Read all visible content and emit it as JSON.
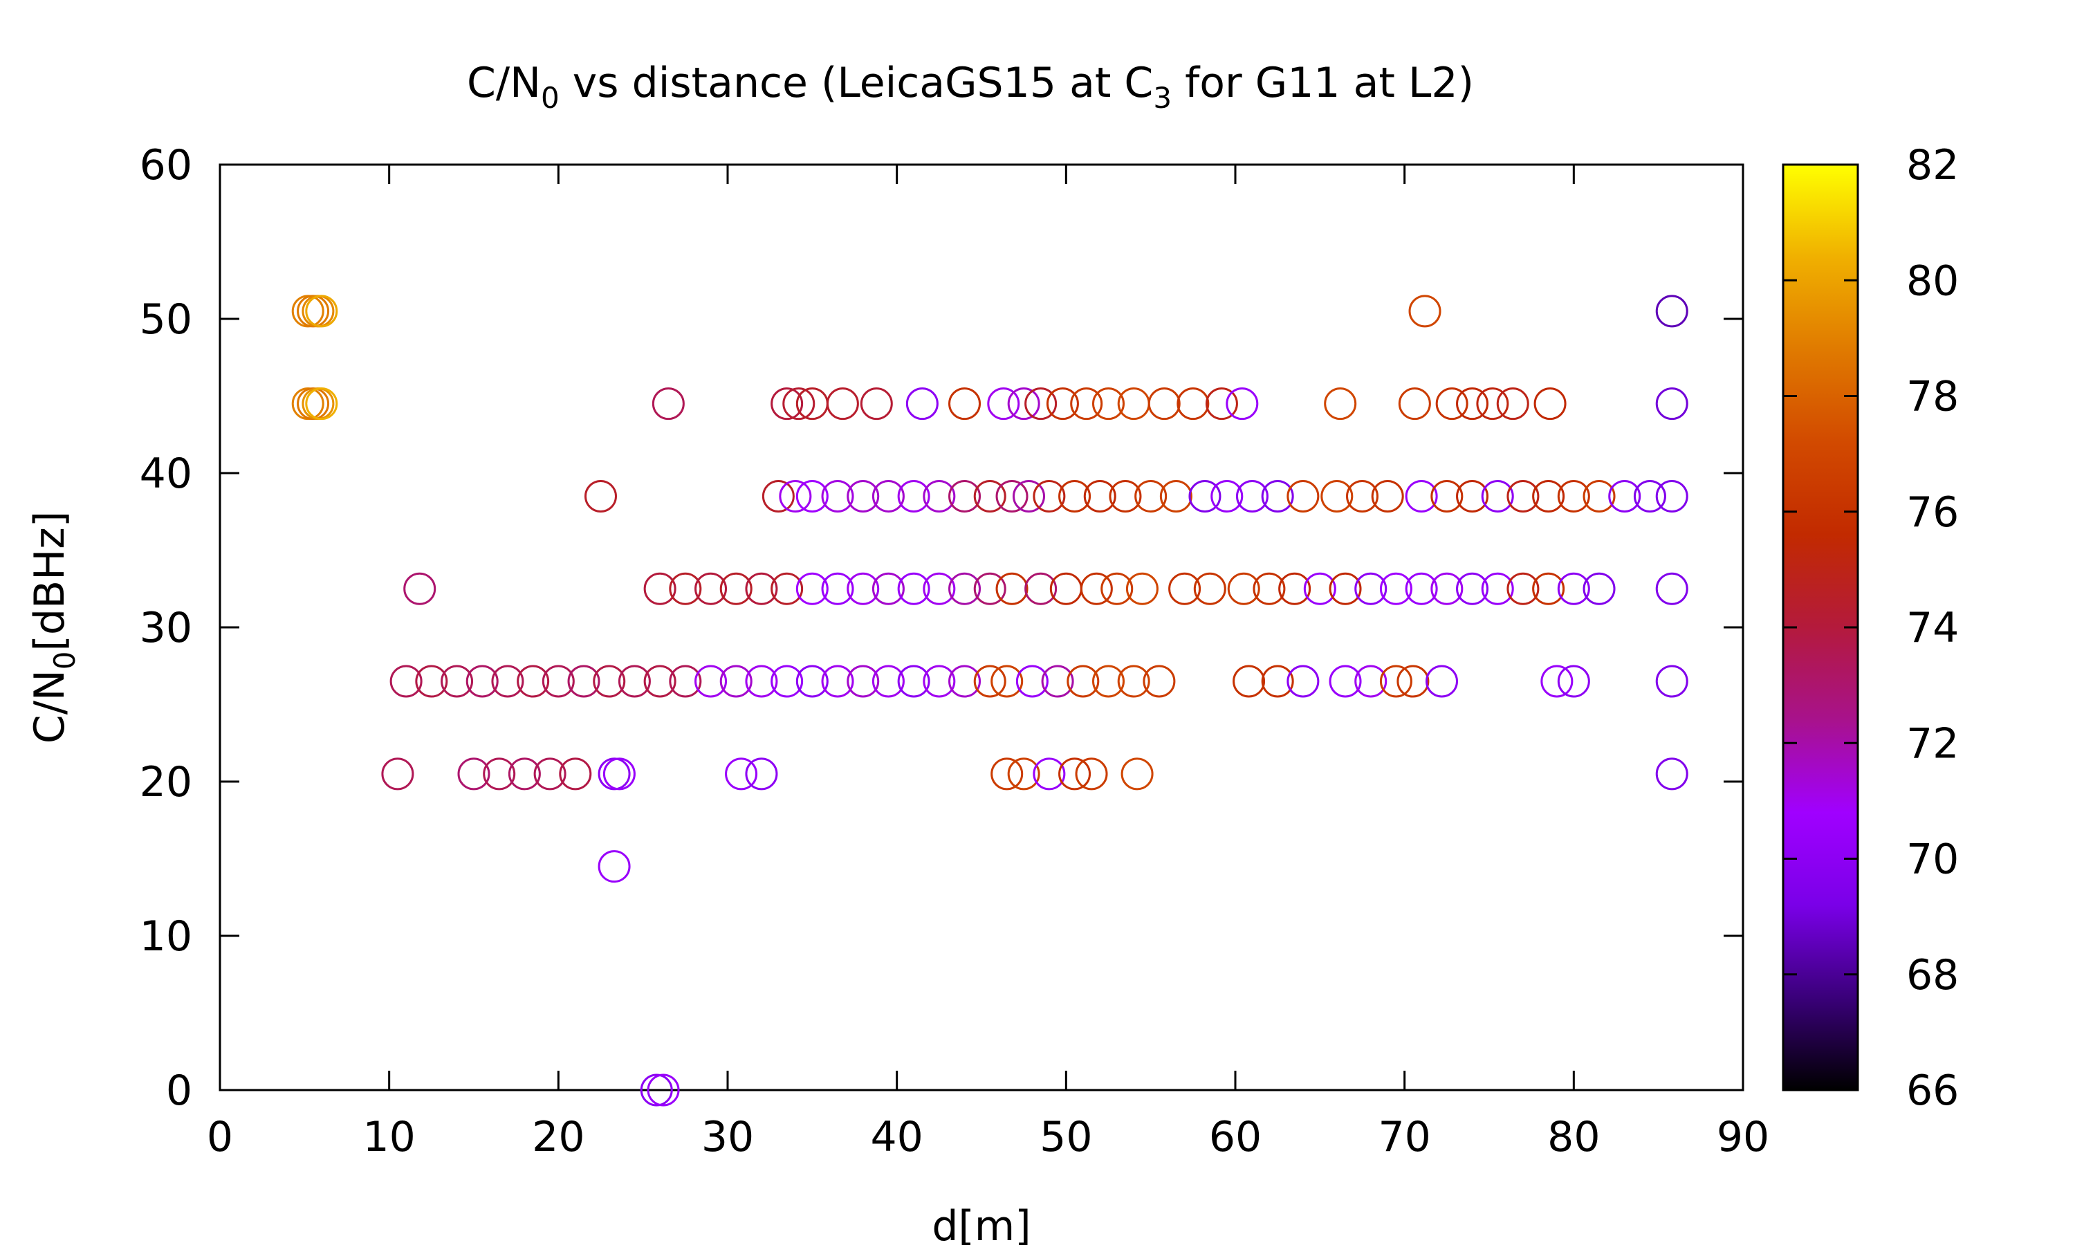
{
  "chart_data": {
    "type": "scatter",
    "title": {
      "main": "C/N",
      "sub1": "0",
      "mid": " vs distance (LeicaGS15 at C",
      "sub2": "3",
      "end": " for G11 at L2)"
    },
    "xlabel": "d[m]",
    "ylabel": {
      "main": "C/N",
      "sub": "0",
      "end": "[dBHz]"
    },
    "xlim": [
      0,
      90
    ],
    "ylim": [
      0,
      60
    ],
    "x_ticks": [
      "0",
      "10",
      "20",
      "30",
      "40",
      "50",
      "60",
      "70",
      "80",
      "90"
    ],
    "y_ticks": [
      "0",
      "10",
      "20",
      "30",
      "40",
      "50",
      "60"
    ],
    "marker": "open-circle",
    "colorbar": {
      "range": [
        66,
        82
      ],
      "ticks": [
        "66",
        "68",
        "70",
        "72",
        "74",
        "76",
        "78",
        "80",
        "82"
      ],
      "colormap": [
        "#000000",
        "#3a007a",
        "#7a00e8",
        "#a000ff",
        "#a8128c",
        "#b41a3c",
        "#c22a00",
        "#d24a00",
        "#e07a00",
        "#f0b000",
        "#ffff00"
      ]
    },
    "points": [
      [
        5.2,
        50.5,
        79.0
      ],
      [
        5.5,
        50.5,
        78.8
      ],
      [
        5.8,
        50.5,
        79.2
      ],
      [
        6.0,
        50.5,
        80.2
      ],
      [
        5.2,
        44.5,
        79.0
      ],
      [
        5.5,
        44.5,
        78.7
      ],
      [
        5.8,
        44.5,
        79.5
      ],
      [
        6.0,
        44.5,
        80.4
      ],
      [
        71.2,
        50.5,
        77.0
      ],
      [
        85.8,
        50.5,
        68.5
      ],
      [
        26.5,
        44.5,
        73.5
      ],
      [
        33.5,
        44.5,
        74.0
      ],
      [
        34.2,
        44.5,
        74.3
      ],
      [
        35.0,
        44.5,
        74.5
      ],
      [
        36.8,
        44.5,
        74.4
      ],
      [
        38.8,
        44.5,
        74.2
      ],
      [
        41.5,
        44.5,
        70.0
      ],
      [
        44.0,
        44.5,
        76.0
      ],
      [
        46.3,
        44.5,
        71.0
      ],
      [
        47.5,
        44.5,
        71.5
      ],
      [
        48.5,
        44.5,
        74.5
      ],
      [
        49.8,
        44.5,
        76.0
      ],
      [
        51.2,
        44.5,
        76.5
      ],
      [
        52.5,
        44.5,
        76.8
      ],
      [
        54.0,
        44.5,
        77.0
      ],
      [
        55.8,
        44.5,
        76.5
      ],
      [
        57.5,
        44.5,
        76.2
      ],
      [
        59.2,
        44.5,
        75.0
      ],
      [
        60.4,
        44.5,
        70.5
      ],
      [
        66.2,
        44.5,
        77.0
      ],
      [
        70.6,
        44.5,
        76.5
      ],
      [
        72.8,
        44.5,
        76.0
      ],
      [
        74.0,
        44.5,
        75.5
      ],
      [
        75.2,
        44.5,
        75.2
      ],
      [
        76.4,
        44.5,
        75.0
      ],
      [
        78.6,
        44.5,
        75.5
      ],
      [
        85.8,
        44.5,
        69.0
      ],
      [
        22.5,
        38.5,
        74.5
      ],
      [
        33.0,
        38.5,
        74.5
      ],
      [
        34.0,
        38.5,
        71.0
      ],
      [
        35.0,
        38.5,
        70.8
      ],
      [
        36.5,
        38.5,
        71.2
      ],
      [
        38.0,
        38.5,
        71.5
      ],
      [
        39.5,
        38.5,
        71.5
      ],
      [
        41.0,
        38.5,
        71.0
      ],
      [
        42.5,
        38.5,
        71.5
      ],
      [
        44.0,
        38.5,
        73.0
      ],
      [
        45.5,
        38.5,
        74.5
      ],
      [
        46.8,
        38.5,
        73.0
      ],
      [
        47.8,
        38.5,
        72.0
      ],
      [
        49.0,
        38.5,
        75.0
      ],
      [
        50.5,
        38.5,
        76.0
      ],
      [
        52.0,
        38.5,
        75.5
      ],
      [
        53.5,
        38.5,
        76.0
      ],
      [
        55.0,
        38.5,
        76.5
      ],
      [
        56.5,
        38.5,
        76.8
      ],
      [
        58.2,
        38.5,
        69.5
      ],
      [
        59.5,
        38.5,
        70.5
      ],
      [
        61.0,
        38.5,
        70.0
      ],
      [
        62.5,
        38.5,
        69.5
      ],
      [
        64.0,
        38.5,
        76.5
      ],
      [
        66.0,
        38.5,
        76.8
      ],
      [
        67.5,
        38.5,
        76.2
      ],
      [
        69.0,
        38.5,
        76.0
      ],
      [
        71.0,
        38.5,
        70.5
      ],
      [
        72.5,
        38.5,
        76.0
      ],
      [
        74.0,
        38.5,
        75.5
      ],
      [
        75.5,
        38.5,
        70.0
      ],
      [
        77.0,
        38.5,
        75.0
      ],
      [
        78.5,
        38.5,
        75.5
      ],
      [
        80.0,
        38.5,
        76.0
      ],
      [
        81.5,
        38.5,
        76.5
      ],
      [
        83.0,
        38.5,
        70.0
      ],
      [
        84.5,
        38.5,
        69.5
      ],
      [
        85.8,
        38.5,
        69.5
      ],
      [
        11.8,
        32.5,
        73.0
      ],
      [
        26.0,
        32.5,
        74.0
      ],
      [
        27.5,
        32.5,
        74.5
      ],
      [
        29.0,
        32.5,
        74.0
      ],
      [
        30.5,
        32.5,
        74.5
      ],
      [
        32.0,
        32.5,
        74.0
      ],
      [
        33.5,
        32.5,
        74.5
      ],
      [
        35.0,
        32.5,
        70.8
      ],
      [
        36.5,
        32.5,
        70.5
      ],
      [
        38.0,
        32.5,
        71.0
      ],
      [
        39.5,
        32.5,
        71.5
      ],
      [
        41.0,
        32.5,
        70.5
      ],
      [
        42.5,
        32.5,
        71.0
      ],
      [
        44.0,
        32.5,
        72.0
      ],
      [
        45.5,
        32.5,
        73.0
      ],
      [
        46.8,
        32.5,
        76.0
      ],
      [
        48.5,
        32.5,
        73.0
      ],
      [
        50.0,
        32.5,
        75.5
      ],
      [
        51.8,
        32.5,
        76.0
      ],
      [
        53.0,
        32.5,
        76.5
      ],
      [
        54.5,
        32.5,
        77.0
      ],
      [
        57.0,
        32.5,
        76.0
      ],
      [
        58.5,
        32.5,
        76.2
      ],
      [
        60.5,
        32.5,
        76.5
      ],
      [
        62.0,
        32.5,
        76.0
      ],
      [
        63.5,
        32.5,
        75.5
      ],
      [
        65.0,
        32.5,
        70.5
      ],
      [
        66.5,
        32.5,
        75.5
      ],
      [
        68.0,
        32.5,
        70.0
      ],
      [
        69.5,
        32.5,
        70.8
      ],
      [
        71.0,
        32.5,
        70.5
      ],
      [
        72.5,
        32.5,
        71.0
      ],
      [
        74.0,
        32.5,
        70.0
      ],
      [
        75.5,
        32.5,
        70.5
      ],
      [
        77.0,
        32.5,
        75.0
      ],
      [
        78.5,
        32.5,
        76.0
      ],
      [
        80.0,
        32.5,
        70.0
      ],
      [
        81.5,
        32.5,
        69.5
      ],
      [
        85.8,
        32.5,
        69.5
      ],
      [
        11.0,
        26.5,
        73.5
      ],
      [
        12.5,
        26.5,
        73.8
      ],
      [
        14.0,
        26.5,
        73.5
      ],
      [
        15.5,
        26.5,
        73.2
      ],
      [
        17.0,
        26.5,
        73.5
      ],
      [
        18.5,
        26.5,
        73.8
      ],
      [
        20.0,
        26.5,
        73.5
      ],
      [
        21.5,
        26.5,
        73.2
      ],
      [
        23.0,
        26.5,
        73.8
      ],
      [
        24.5,
        26.5,
        73.5
      ],
      [
        26.0,
        26.5,
        73.8
      ],
      [
        27.5,
        26.5,
        73.5
      ],
      [
        29.0,
        26.5,
        71.0
      ],
      [
        30.5,
        26.5,
        71.5
      ],
      [
        32.0,
        26.5,
        71.0
      ],
      [
        33.5,
        26.5,
        70.5
      ],
      [
        35.0,
        26.5,
        70.0
      ],
      [
        36.5,
        26.5,
        71.0
      ],
      [
        38.0,
        26.5,
        71.5
      ],
      [
        39.5,
        26.5,
        71.0
      ],
      [
        41.0,
        26.5,
        70.0
      ],
      [
        42.5,
        26.5,
        71.0
      ],
      [
        44.0,
        26.5,
        71.5
      ],
      [
        45.5,
        26.5,
        76.5
      ],
      [
        46.5,
        26.5,
        76.8
      ],
      [
        48.0,
        26.5,
        70.5
      ],
      [
        49.5,
        26.5,
        72.0
      ],
      [
        51.0,
        26.5,
        76.5
      ],
      [
        52.5,
        26.5,
        77.0
      ],
      [
        54.0,
        26.5,
        76.8
      ],
      [
        55.5,
        26.5,
        76.5
      ],
      [
        60.8,
        26.5,
        76.0
      ],
      [
        62.5,
        26.5,
        76.0
      ],
      [
        64.0,
        26.5,
        70.0
      ],
      [
        66.5,
        26.5,
        70.5
      ],
      [
        68.0,
        26.5,
        71.0
      ],
      [
        69.5,
        26.5,
        76.5
      ],
      [
        70.5,
        26.5,
        76.2
      ],
      [
        72.2,
        26.5,
        70.0
      ],
      [
        79.0,
        26.5,
        70.5
      ],
      [
        80.0,
        26.5,
        70.0
      ],
      [
        85.8,
        26.5,
        69.5
      ],
      [
        10.5,
        20.5,
        73.5
      ],
      [
        15.0,
        20.5,
        73.0
      ],
      [
        16.5,
        20.5,
        73.5
      ],
      [
        18.0,
        20.5,
        73.2
      ],
      [
        19.5,
        20.5,
        73.5
      ],
      [
        21.0,
        20.5,
        73.8
      ],
      [
        23.3,
        20.5,
        70.0
      ],
      [
        23.6,
        20.5,
        70.5
      ],
      [
        30.8,
        20.5,
        70.5
      ],
      [
        32.0,
        20.5,
        70.0
      ],
      [
        46.5,
        20.5,
        76.5
      ],
      [
        47.5,
        20.5,
        76.8
      ],
      [
        49.0,
        20.5,
        70.5
      ],
      [
        50.5,
        20.5,
        76.0
      ],
      [
        51.5,
        20.5,
        76.5
      ],
      [
        54.2,
        20.5,
        77.0
      ],
      [
        85.8,
        20.5,
        69.5
      ],
      [
        23.3,
        14.5,
        70.5
      ],
      [
        25.8,
        0.0,
        70.0
      ],
      [
        26.2,
        0.0,
        70.5
      ]
    ]
  }
}
